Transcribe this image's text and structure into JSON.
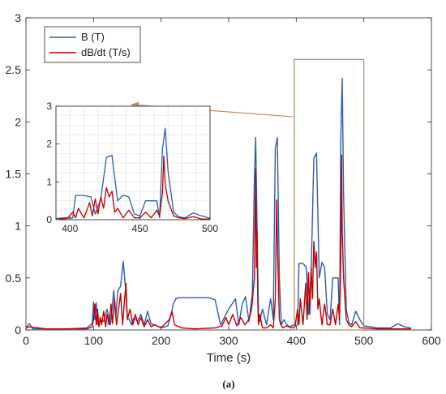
{
  "chart_data": {
    "type": "line",
    "xlabel": "Time (s)",
    "ylabel": "",
    "xlim": [
      0,
      600
    ],
    "ylim": [
      0,
      3
    ],
    "xticks": [
      0,
      100,
      200,
      300,
      400,
      500,
      600
    ],
    "yticks": [
      0,
      0.5,
      1,
      1.5,
      2,
      2.5,
      3
    ],
    "grid": false,
    "legend_position": "top-left",
    "caption": "(a)",
    "series": [
      {
        "name": "B (T)",
        "color": "#2f5dab",
        "x": [
          0,
          5,
          10,
          30,
          60,
          90,
          98,
          100,
          102,
          104,
          106,
          108,
          110,
          115,
          120,
          125,
          130,
          133,
          136,
          140,
          144,
          148,
          150,
          153,
          156,
          160,
          165,
          170,
          175,
          180,
          185,
          190,
          200,
          210,
          215,
          218,
          222,
          226,
          232,
          240,
          250,
          260,
          270,
          280,
          288,
          292,
          296,
          300,
          305,
          310,
          315,
          320,
          325,
          330,
          335,
          338,
          340,
          342,
          344,
          346,
          350,
          356,
          362,
          366,
          369,
          372,
          375,
          378,
          382,
          386,
          390,
          396,
          400,
          402,
          404,
          410,
          415,
          418,
          422,
          426,
          430,
          434,
          438,
          442,
          446,
          450,
          454,
          458,
          462,
          464,
          466,
          468,
          470,
          474,
          478,
          482,
          488,
          494,
          500,
          510,
          520,
          530,
          540,
          550,
          560,
          570
        ],
        "y": [
          0.02,
          0.06,
          0.01,
          0.01,
          0.01,
          0.02,
          0.06,
          0.27,
          0.1,
          0.26,
          0.06,
          0.04,
          0.1,
          0.08,
          0.2,
          0.05,
          0.38,
          0.12,
          0.38,
          0.42,
          0.66,
          0.35,
          0.12,
          0.1,
          0.05,
          0.12,
          0.08,
          0.15,
          0.05,
          0.18,
          0.06,
          0.05,
          0.02,
          0.04,
          0.15,
          0.25,
          0.3,
          0.31,
          0.31,
          0.31,
          0.31,
          0.31,
          0.31,
          0.29,
          0.05,
          0.1,
          0.15,
          0.2,
          0.25,
          0.3,
          0.05,
          0.25,
          0.32,
          0.08,
          0.35,
          1.45,
          1.85,
          1.0,
          0.15,
          0.08,
          0.2,
          0.05,
          0.3,
          0.1,
          1.75,
          1.85,
          0.5,
          0.05,
          0.1,
          0.05,
          0.03,
          0.05,
          0.04,
          0.05,
          0.64,
          0.64,
          0.6,
          0.15,
          0.55,
          1.65,
          1.7,
          0.5,
          0.65,
          0.6,
          0.15,
          0.1,
          0.5,
          0.5,
          0.5,
          0.05,
          1.85,
          2.42,
          1.3,
          0.2,
          0.07,
          0.05,
          0.18,
          0.1,
          0.04,
          0.03,
          0.02,
          0.02,
          0.02,
          0.06,
          0.03,
          0.02
        ]
      },
      {
        "name": "dB/dt (T/s)",
        "color": "#c00000",
        "x": [
          0,
          5,
          30,
          90,
          98,
          100,
          102,
          104,
          106,
          108,
          110,
          112,
          115,
          118,
          120,
          123,
          126,
          128,
          131,
          134,
          137,
          140,
          143,
          146,
          148,
          150,
          154,
          158,
          162,
          166,
          170,
          175,
          180,
          185,
          190,
          200,
          212,
          216,
          220,
          230,
          250,
          280,
          290,
          296,
          300,
          306,
          312,
          318,
          324,
          330,
          334,
          338,
          340,
          341,
          342,
          343,
          344,
          346,
          350,
          356,
          362,
          366,
          369,
          371,
          373,
          375,
          377,
          380,
          386,
          392,
          398,
          402,
          404,
          406,
          410,
          414,
          416,
          418,
          420,
          422,
          424,
          426,
          428,
          430,
          432,
          434,
          438,
          442,
          446,
          450,
          454,
          458,
          462,
          464,
          466,
          467,
          468,
          470,
          472,
          474,
          478,
          482,
          488,
          494,
          500,
          520,
          560,
          570
        ],
        "y": [
          0.02,
          0.03,
          0.01,
          0.01,
          0.03,
          0.1,
          0.25,
          0.05,
          0.2,
          0.03,
          0.12,
          0.05,
          0.18,
          0.03,
          0.15,
          0.05,
          0.25,
          0.06,
          0.3,
          0.05,
          0.2,
          0.35,
          0.05,
          0.3,
          0.45,
          0.1,
          0.2,
          0.05,
          0.15,
          0.05,
          0.12,
          0.03,
          0.1,
          0.03,
          0.05,
          0.02,
          0.1,
          0.18,
          0.05,
          0.02,
          0.01,
          0.02,
          0.04,
          0.12,
          0.05,
          0.15,
          0.04,
          0.12,
          0.05,
          0.1,
          0.2,
          0.5,
          1.55,
          0.6,
          0.95,
          0.3,
          0.05,
          0.15,
          0.02,
          0.02,
          0.05,
          0.02,
          0.3,
          1.25,
          0.6,
          0.1,
          0.05,
          0.02,
          0.04,
          0.02,
          0.03,
          0.2,
          0.05,
          0.3,
          0.05,
          0.45,
          0.1,
          0.55,
          0.15,
          0.6,
          0.3,
          0.85,
          0.6,
          0.75,
          0.2,
          0.3,
          0.05,
          0.25,
          0.05,
          0.05,
          0.2,
          0.05,
          0.25,
          0.1,
          0.7,
          1.68,
          0.95,
          0.5,
          0.3,
          0.1,
          0.05,
          0.03,
          0.08,
          0.02,
          0.02,
          0.01,
          0.01,
          0.01
        ]
      }
    ],
    "inset": {
      "xlim": [
        390,
        500
      ],
      "ylim": [
        0,
        3
      ],
      "xticks": [
        400,
        450,
        500
      ],
      "yticks": [
        0,
        1,
        2,
        3
      ],
      "grid": true,
      "zoom_box": {
        "x": [
          397,
          500
        ],
        "y": [
          0,
          2.6
        ]
      }
    }
  }
}
